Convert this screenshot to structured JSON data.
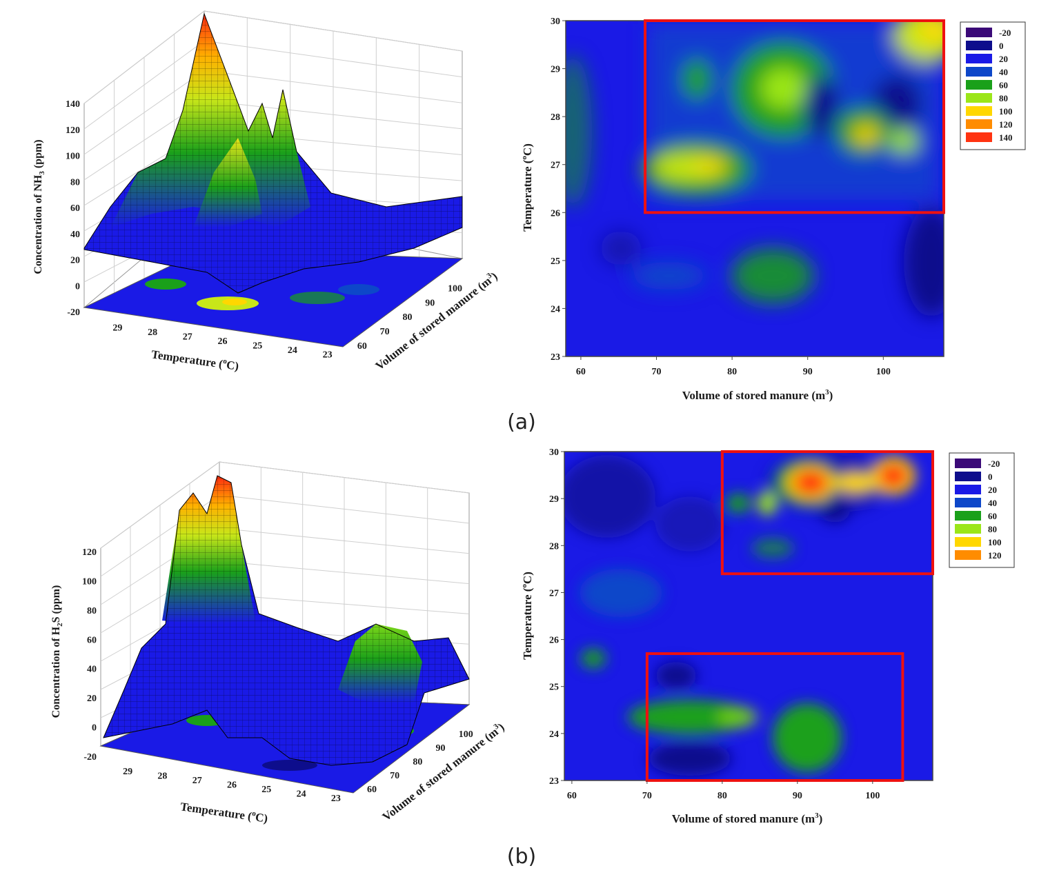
{
  "colors": {
    "red_box": "#ee1111",
    "contour_scale": [
      "#3b0a78",
      "#0d0d8c",
      "#1a1ae6",
      "#0d47c9",
      "#1aa01a",
      "#9be619",
      "#ffd700",
      "#ff8c00",
      "#ff3311"
    ]
  },
  "chart_data": [
    {
      "id": "a-3d",
      "type": "surface3d",
      "title": "",
      "zlabel": "Concentration of NH3 (ppm)",
      "xlabel": "Temperature (oC)",
      "ylabel": "Volume of stored manure (m3)",
      "z_ticks": [
        "-20",
        "0",
        "20",
        "40",
        "60",
        "80",
        "100",
        "120",
        "140"
      ],
      "x_ticks": [
        "29",
        "28",
        "27",
        "26",
        "25",
        "24",
        "23"
      ],
      "y_ticks": [
        "60",
        "70",
        "80",
        "90",
        "100"
      ],
      "zlim": [
        -20,
        140
      ],
      "x_range": [
        23,
        30
      ],
      "y_range": [
        58,
        108
      ]
    },
    {
      "id": "a-contour",
      "type": "heatmap",
      "title": "",
      "xlabel": "Volume of stored manure (m3)",
      "ylabel": "Temperature (oC)",
      "x_ticks": [
        "60",
        "70",
        "80",
        "90",
        "100"
      ],
      "y_ticks": [
        "30",
        "29",
        "28",
        "27",
        "26",
        "25",
        "24",
        "23"
      ],
      "xlim": [
        58,
        108
      ],
      "ylim": [
        23,
        30
      ],
      "legend_levels": [
        "-20",
        "0",
        "20",
        "40",
        "60",
        "80",
        "100",
        "120",
        "140"
      ],
      "legend_position": "right",
      "highlight_boxes": [
        {
          "x": [
            68.5,
            108
          ],
          "y": [
            26,
            30
          ]
        }
      ]
    },
    {
      "id": "b-3d",
      "type": "surface3d",
      "title": "",
      "zlabel": "Concentration of H2S (ppm)",
      "xlabel": "Temperature (oC)",
      "ylabel": "Volume of stored manure (m3)",
      "z_ticks": [
        "-20",
        "0",
        "20",
        "40",
        "60",
        "80",
        "100",
        "120"
      ],
      "x_ticks": [
        "29",
        "28",
        "27",
        "26",
        "25",
        "24",
        "23"
      ],
      "y_ticks": [
        "60",
        "70",
        "80",
        "90",
        "100"
      ],
      "zlim": [
        -20,
        120
      ],
      "x_range": [
        23,
        30
      ],
      "y_range": [
        58,
        108
      ]
    },
    {
      "id": "b-contour",
      "type": "heatmap",
      "title": "",
      "xlabel": "Volume of stored manure (m3)",
      "ylabel": "Temperature (oC)",
      "x_ticks": [
        "60",
        "70",
        "80",
        "90",
        "100"
      ],
      "y_ticks": [
        "30",
        "29",
        "28",
        "27",
        "26",
        "25",
        "24",
        "23"
      ],
      "xlim": [
        59,
        108
      ],
      "ylim": [
        23,
        30
      ],
      "legend_levels": [
        "-20",
        "0",
        "20",
        "40",
        "60",
        "80",
        "100",
        "120"
      ],
      "legend_position": "right",
      "highlight_boxes": [
        {
          "x": [
            80,
            108
          ],
          "y": [
            27.4,
            30
          ]
        },
        {
          "x": [
            70,
            104
          ],
          "y": [
            23,
            25.7
          ]
        }
      ]
    }
  ],
  "captions": {
    "a": "(a)",
    "b": "(b)"
  }
}
